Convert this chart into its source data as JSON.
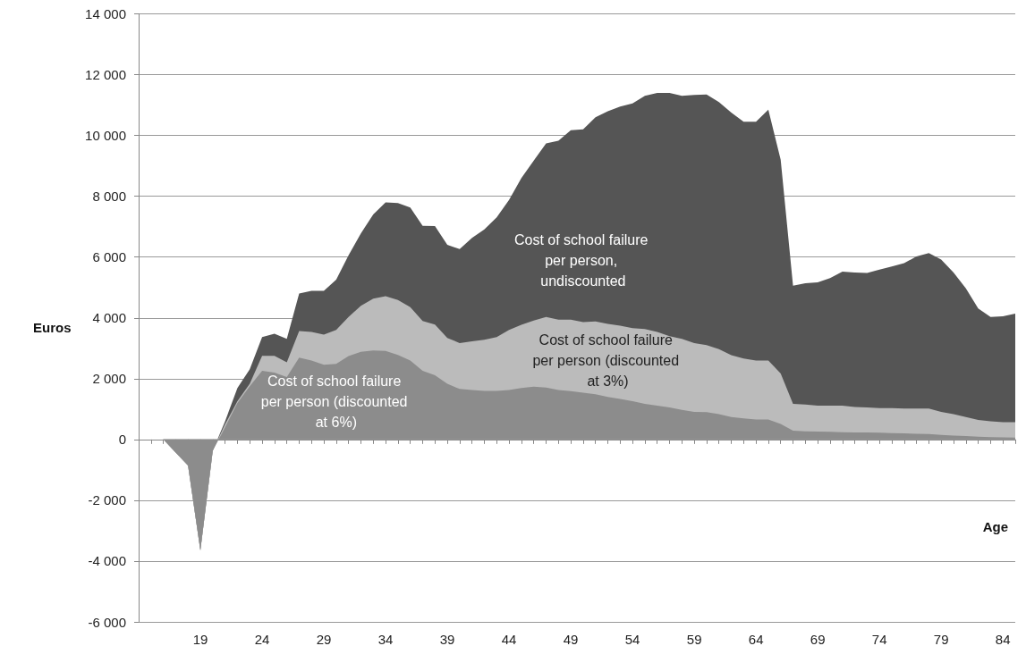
{
  "chart_data": {
    "type": "area",
    "xlabel": "Age",
    "ylabel": "Euros",
    "categories": [
      null,
      null,
      null,
      null,
      null,
      "19",
      null,
      null,
      null,
      null,
      "24",
      null,
      null,
      null,
      null,
      "29",
      null,
      null,
      null,
      null,
      "34",
      null,
      null,
      null,
      null,
      "39",
      null,
      null,
      null,
      null,
      "44",
      null,
      null,
      null,
      null,
      "49",
      null,
      null,
      null,
      null,
      "54",
      null,
      null,
      null,
      null,
      "59",
      null,
      null,
      null,
      null,
      "64",
      null,
      null,
      null,
      null,
      "69",
      null,
      null,
      null,
      null,
      "74",
      null,
      null,
      null,
      null,
      "79",
      null,
      null,
      null,
      null,
      "84",
      null
    ],
    "series": [
      {
        "name": "Cost of school failure per person, undiscounted",
        "color": "#555555",
        "values": [
          0,
          0,
          0,
          -430,
          -860,
          -3650,
          -370,
          600,
          1690,
          2310,
          3370,
          3480,
          3310,
          4800,
          4890,
          4890,
          5260,
          6060,
          6780,
          7400,
          7800,
          7780,
          7630,
          7030,
          7020,
          6400,
          6260,
          6630,
          6910,
          7310,
          7880,
          8600,
          9170,
          9740,
          9830,
          10170,
          10200,
          10600,
          10800,
          10950,
          11050,
          11300,
          11400,
          11400,
          11300,
          11330,
          11350,
          11100,
          10750,
          10450,
          10450,
          10850,
          9200,
          5060,
          5140,
          5170,
          5310,
          5520,
          5490,
          5480,
          5590,
          5690,
          5800,
          6020,
          6130,
          5920,
          5490,
          4970,
          4310,
          4030,
          4050,
          4140
        ]
      },
      {
        "name": "Cost of school failure per person (discounted at 3%)",
        "color": "#bbbbbb",
        "values": [
          0,
          0,
          0,
          -430,
          -860,
          -3650,
          -370,
          500,
          1260,
          1830,
          2750,
          2750,
          2540,
          3570,
          3540,
          3450,
          3600,
          4030,
          4400,
          4630,
          4710,
          4590,
          4350,
          3900,
          3780,
          3340,
          3170,
          3230,
          3280,
          3370,
          3600,
          3770,
          3910,
          4030,
          3940,
          3940,
          3860,
          3880,
          3800,
          3740,
          3660,
          3630,
          3540,
          3400,
          3310,
          3170,
          3100,
          2970,
          2770,
          2660,
          2600,
          2600,
          2170,
          1170,
          1150,
          1110,
          1110,
          1110,
          1070,
          1050,
          1030,
          1030,
          1020,
          1020,
          1020,
          910,
          830,
          740,
          640,
          600,
          570,
          570
        ]
      },
      {
        "name": "Cost of school failure per person (discounted at 6%)",
        "color": "#8c8c8c",
        "values": [
          0,
          0,
          0,
          -430,
          -860,
          -3650,
          -370,
          400,
          1200,
          1750,
          2260,
          2200,
          2050,
          2690,
          2600,
          2460,
          2490,
          2740,
          2880,
          2930,
          2910,
          2780,
          2600,
          2260,
          2110,
          1830,
          1660,
          1630,
          1600,
          1600,
          1630,
          1690,
          1740,
          1710,
          1630,
          1590,
          1540,
          1490,
          1400,
          1330,
          1260,
          1170,
          1110,
          1050,
          970,
          910,
          900,
          830,
          740,
          690,
          660,
          660,
          510,
          290,
          270,
          260,
          250,
          240,
          230,
          230,
          220,
          210,
          200,
          190,
          180,
          150,
          130,
          110,
          90,
          80,
          70,
          60
        ]
      }
    ],
    "ylim": [
      -6000,
      14000
    ],
    "yticks": [
      {
        "value": -6000,
        "label": "-6 000"
      },
      {
        "value": -4000,
        "label": "-4 000"
      },
      {
        "value": -2000,
        "label": "-2 000"
      },
      0,
      {
        "value": 2000,
        "label": "2 000"
      },
      {
        "value": 4000,
        "label": "4 000"
      },
      {
        "value": 6000,
        "label": "6 000"
      },
      {
        "value": 8000,
        "label": "8 000"
      },
      {
        "value": 10000,
        "label": "10 000"
      },
      {
        "value": 12000,
        "label": "12 000"
      },
      {
        "value": 14000,
        "label": "14 000"
      }
    ],
    "grid": "y",
    "legend": false
  }
}
